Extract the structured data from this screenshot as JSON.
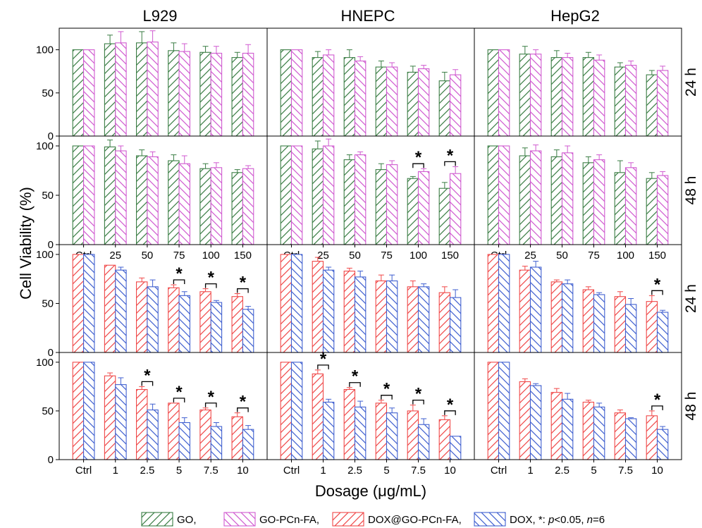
{
  "figure": {
    "ylabel": "Cell Viability (%)",
    "xlabel": "Dosage (μg/mL)",
    "columns": [
      "L929",
      "HNEPC",
      "HepG2"
    ],
    "rows": [
      "24 h",
      "48 h",
      "24 h",
      "48 h"
    ],
    "y_ticks": [
      "0",
      "50",
      "100"
    ],
    "legend": [
      {
        "label": "GO,",
        "color": "#3a7d44",
        "hatch": "forward"
      },
      {
        "label": "GO-PCn-FA,",
        "color": "#d05ad0",
        "hatch": "back"
      },
      {
        "label": "DOX@GO-PCn-FA,",
        "color": "#f04848",
        "hatch": "forward"
      },
      {
        "label": "DOX, *: ",
        "color": "#4060d0",
        "hatch": "back"
      }
    ],
    "legend_tail": {
      "p": "p",
      "p_rest": "<0.05, ",
      "n": "n",
      "n_rest": "=6"
    }
  },
  "chart_data": [
    {
      "type": "bar",
      "panel": "L929 24 h",
      "categories": [
        "Ctrl",
        "25",
        "50",
        "75",
        "100",
        "150"
      ],
      "ylim": [
        0,
        125
      ],
      "series": [
        {
          "name": "GO",
          "values": [
            100,
            107,
            108,
            99,
            97,
            91
          ],
          "err": [
            0,
            10,
            13,
            9,
            7,
            6
          ]
        },
        {
          "name": "GO-PCn-FA",
          "values": [
            100,
            108,
            109,
            98,
            96,
            96
          ],
          "err": [
            0,
            13,
            13,
            9,
            8,
            10
          ]
        }
      ],
      "significant": []
    },
    {
      "type": "bar",
      "panel": "HNEPC 24 h",
      "categories": [
        "Ctrl",
        "25",
        "50",
        "75",
        "100",
        "150"
      ],
      "ylim": [
        0,
        125
      ],
      "series": [
        {
          "name": "GO",
          "values": [
            100,
            91,
            91,
            80,
            74,
            64
          ],
          "err": [
            0,
            7,
            9,
            7,
            7,
            10
          ]
        },
        {
          "name": "GO-PCn-FA",
          "values": [
            100,
            94,
            87,
            80,
            78,
            71
          ],
          "err": [
            0,
            6,
            5,
            5,
            4,
            6
          ]
        }
      ],
      "significant": []
    },
    {
      "type": "bar",
      "panel": "HepG2 24 h",
      "categories": [
        "Ctrl",
        "25",
        "50",
        "75",
        "100",
        "150"
      ],
      "ylim": [
        0,
        125
      ],
      "series": [
        {
          "name": "GO",
          "values": [
            100,
            95,
            91,
            91,
            80,
            71
          ],
          "err": [
            0,
            9,
            8,
            6,
            5,
            5
          ]
        },
        {
          "name": "GO-PCn-FA",
          "values": [
            100,
            95,
            91,
            88,
            82,
            76
          ],
          "err": [
            0,
            5,
            5,
            6,
            5,
            5
          ]
        }
      ],
      "significant": []
    },
    {
      "type": "bar",
      "panel": "L929 48 h",
      "categories": [
        "Ctrl",
        "25",
        "50",
        "75",
        "100",
        "150"
      ],
      "ylim": [
        0,
        110
      ],
      "series": [
        {
          "name": "GO",
          "values": [
            100,
            99,
            90,
            85,
            77,
            73
          ],
          "err": [
            0,
            7,
            6,
            6,
            5,
            3
          ]
        },
        {
          "name": "GO-PCn-FA",
          "values": [
            100,
            95,
            89,
            82,
            78,
            77
          ],
          "err": [
            0,
            5,
            5,
            8,
            5,
            3
          ]
        }
      ],
      "significant": []
    },
    {
      "type": "bar",
      "panel": "HNEPC 48 h",
      "categories": [
        "Ctrl",
        "25",
        "50",
        "75",
        "100",
        "150"
      ],
      "ylim": [
        0,
        110
      ],
      "series": [
        {
          "name": "GO",
          "values": [
            100,
            97,
            86,
            76,
            67,
            57
          ],
          "err": [
            0,
            8,
            5,
            6,
            2,
            6
          ]
        },
        {
          "name": "GO-PCn-FA",
          "values": [
            100,
            100,
            91,
            81,
            74,
            72
          ],
          "err": [
            0,
            7,
            3,
            4,
            3,
            7
          ]
        }
      ],
      "significant": [
        4,
        5
      ]
    },
    {
      "type": "bar",
      "panel": "HepG2 48 h",
      "categories": [
        "Ctrl",
        "25",
        "50",
        "75",
        "100",
        "150"
      ],
      "ylim": [
        0,
        110
      ],
      "series": [
        {
          "name": "GO",
          "values": [
            100,
            90,
            89,
            83,
            73,
            67
          ],
          "err": [
            0,
            8,
            7,
            6,
            12,
            6
          ]
        },
        {
          "name": "GO-PCn-FA",
          "values": [
            100,
            95,
            93,
            86,
            78,
            70
          ],
          "err": [
            0,
            6,
            7,
            5,
            5,
            4
          ]
        }
      ],
      "significant": []
    },
    {
      "type": "bar",
      "panel": "L929 24 h (DOX)",
      "categories": [
        "Ctrl",
        "1",
        "2.5",
        "5",
        "7.5",
        "10"
      ],
      "ylim": [
        0,
        110
      ],
      "series": [
        {
          "name": "DOX@GO-PCn-FA",
          "values": [
            100,
            89,
            72,
            66,
            62,
            57
          ],
          "err": [
            0,
            0,
            4,
            3,
            3,
            3
          ]
        },
        {
          "name": "DOX",
          "values": [
            100,
            84,
            67,
            58,
            51,
            44
          ],
          "err": [
            0,
            3,
            7,
            4,
            2,
            3
          ]
        }
      ],
      "significant": [
        3,
        4,
        5
      ]
    },
    {
      "type": "bar",
      "panel": "HNEPC 24 h (DOX)",
      "categories": [
        "Ctrl",
        "1",
        "2.5",
        "5",
        "7.5",
        "10"
      ],
      "ylim": [
        0,
        110
      ],
      "series": [
        {
          "name": "DOX@GO-PCn-FA",
          "values": [
            100,
            93,
            83,
            73,
            67,
            61
          ],
          "err": [
            0,
            4,
            3,
            6,
            6,
            6
          ]
        },
        {
          "name": "DOX",
          "values": [
            100,
            84,
            77,
            73,
            67,
            56
          ],
          "err": [
            0,
            3,
            6,
            6,
            3,
            8
          ]
        }
      ],
      "significant": []
    },
    {
      "type": "bar",
      "panel": "HepG2 24 h (DOX)",
      "categories": [
        "Ctrl",
        "1",
        "2.5",
        "5",
        "7.5",
        "10"
      ],
      "ylim": [
        0,
        110
      ],
      "series": [
        {
          "name": "DOX@GO-PCn-FA",
          "values": [
            100,
            84,
            72,
            64,
            57,
            52
          ],
          "err": [
            0,
            4,
            2,
            3,
            5,
            6
          ]
        },
        {
          "name": "DOX",
          "values": [
            100,
            87,
            70,
            59,
            49,
            41
          ],
          "err": [
            0,
            6,
            4,
            2,
            6,
            2
          ]
        }
      ],
      "significant": [
        5
      ]
    },
    {
      "type": "bar",
      "panel": "L929 48 h (DOX)",
      "categories": [
        "Ctrl",
        "1",
        "2.5",
        "5",
        "7.5",
        "10"
      ],
      "ylim": [
        0,
        110
      ],
      "series": [
        {
          "name": "DOX@GO-PCn-FA",
          "values": [
            100,
            86,
            72,
            58,
            51,
            44
          ],
          "err": [
            0,
            3,
            3,
            0,
            2,
            4
          ]
        },
        {
          "name": "DOX",
          "values": [
            100,
            77,
            51,
            38,
            34,
            31
          ],
          "err": [
            0,
            7,
            6,
            5,
            4,
            4
          ]
        }
      ],
      "significant": [
        2,
        3,
        4,
        5
      ]
    },
    {
      "type": "bar",
      "panel": "HNEPC 48 h (DOX)",
      "categories": [
        "Ctrl",
        "1",
        "2.5",
        "5",
        "7.5",
        "10"
      ],
      "ylim": [
        0,
        110
      ],
      "series": [
        {
          "name": "DOX@GO-PCn-FA",
          "values": [
            100,
            88,
            72,
            58,
            50,
            41
          ],
          "err": [
            0,
            4,
            2,
            3,
            6,
            4
          ]
        },
        {
          "name": "DOX",
          "values": [
            100,
            59,
            54,
            48,
            36,
            24
          ],
          "err": [
            0,
            3,
            6,
            5,
            6,
            0
          ]
        }
      ],
      "significant": [
        1,
        2,
        3,
        4,
        5
      ]
    },
    {
      "type": "bar",
      "panel": "HepG2 48 h (DOX)",
      "categories": [
        "Ctrl",
        "1",
        "2.5",
        "5",
        "7.5",
        "10"
      ],
      "ylim": [
        0,
        110
      ],
      "series": [
        {
          "name": "DOX@GO-PCn-FA",
          "values": [
            100,
            80,
            69,
            59,
            48,
            45
          ],
          "err": [
            0,
            3,
            4,
            2,
            3,
            5
          ]
        },
        {
          "name": "DOX",
          "values": [
            100,
            76,
            62,
            54,
            42,
            31
          ],
          "err": [
            0,
            2,
            6,
            4,
            1,
            3
          ]
        }
      ],
      "significant": [
        5
      ]
    }
  ]
}
